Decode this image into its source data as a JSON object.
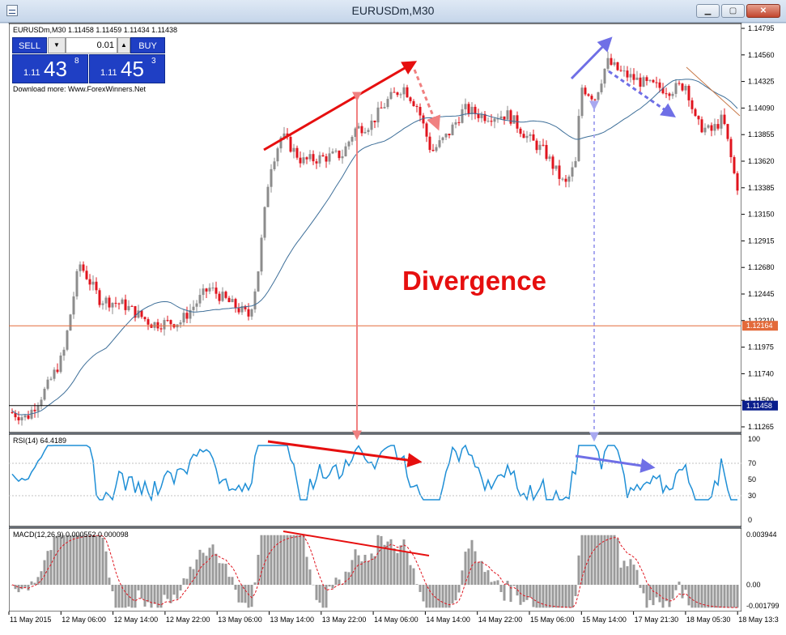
{
  "window": {
    "title": "EURUSDm,M30"
  },
  "chart": {
    "header": "EURUSDm,M30  1.11458 1.11459 1.11434 1.11438",
    "annotation": "Divergence",
    "price_ticks": [
      "1.14795",
      "1.14560",
      "1.14325",
      "1.14090",
      "1.13855",
      "1.13620",
      "1.13385",
      "1.13150",
      "1.12915",
      "1.12680",
      "1.12445",
      "1.12210",
      "1.11975",
      "1.11740",
      "1.11500",
      "1.11265"
    ],
    "price_marker_orange": "1.12164",
    "price_marker_current": "1.11458",
    "time_ticks": [
      "11 May 2015",
      "12 May 06:00",
      "12 May 14:00",
      "12 May 22:00",
      "13 May 06:00",
      "13 May 14:00",
      "13 May 22:00",
      "14 May 06:00",
      "14 May 14:00",
      "14 May 22:00",
      "15 May 06:00",
      "15 May 14:00",
      "17 May 21:30",
      "18 May 05:30",
      "18 May 13:3"
    ]
  },
  "trade": {
    "sell_label": "SELL",
    "buy_label": "BUY",
    "lot": "0.01",
    "sell_small": "1.11",
    "sell_big": "43",
    "sell_sup": "8",
    "buy_small": "1.11",
    "buy_big": "45",
    "buy_sup": "3",
    "download": "Download more: Www.ForexWinners.Net"
  },
  "rsi": {
    "label": "RSI(14) 64.4189",
    "ticks": [
      "100",
      "70",
      "50",
      "30",
      "0"
    ]
  },
  "macd": {
    "label": "MACD(12,26,9) 0.000552 0.000098",
    "ticks": [
      "0.003944",
      "0.00",
      "-0.001799"
    ]
  },
  "colors": {
    "bull": "#8c8c8c",
    "bear": "#e0141e",
    "ma": "#3e6f99",
    "rsi": "#1f8fd6",
    "hist": "#9a9a9a",
    "signal": "#e0141e",
    "price_line": "#e36a3a",
    "red_arrow": "#e60f0f",
    "blue_arrow": "#6f6fe6"
  }
}
